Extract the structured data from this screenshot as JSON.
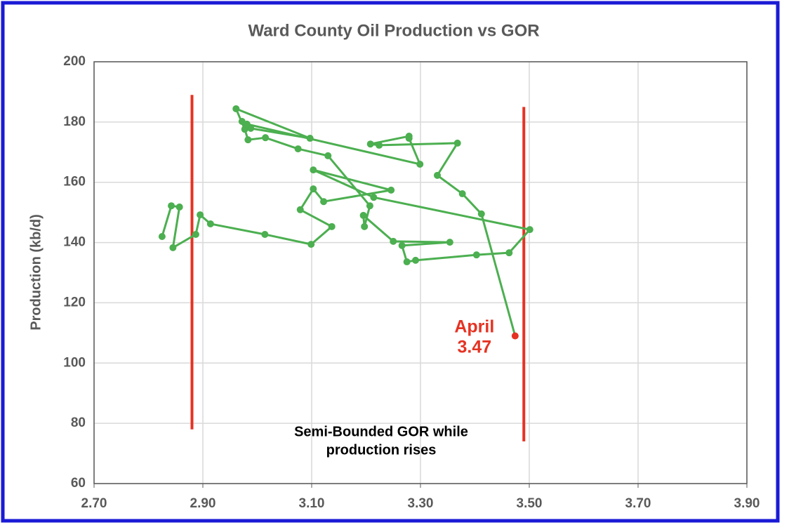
{
  "chart_data": {
    "type": "line",
    "title": "Ward County Oil Production vs GOR",
    "y_label": "Production (kb/d)",
    "xlim": [
      2.7,
      3.9
    ],
    "xticks": [
      {
        "value": 2.7,
        "label": "2.70"
      },
      {
        "value": 2.9,
        "label": "2.90"
      },
      {
        "value": 3.1,
        "label": "3.10"
      },
      {
        "value": 3.3,
        "label": "3.30"
      },
      {
        "value": 3.5,
        "label": "3.50"
      },
      {
        "value": 3.7,
        "label": "3.70"
      },
      {
        "value": 3.9,
        "label": "3.90"
      }
    ],
    "ylim": [
      60,
      200
    ],
    "yticks": [
      60,
      80,
      100,
      120,
      140,
      160,
      180,
      200
    ],
    "grid": true,
    "series": [
      {
        "color": "#4caf50",
        "x": [
          2.825,
          2.842,
          2.857,
          2.845,
          2.887,
          2.895,
          2.914,
          3.014,
          3.099,
          3.137,
          3.079,
          3.103,
          3.122,
          3.246,
          3.103,
          3.214,
          3.501,
          3.463,
          3.403,
          3.291,
          3.275,
          3.266,
          3.354,
          3.25,
          3.195,
          3.197,
          3.207,
          3.13,
          3.075,
          3.015,
          2.983,
          2.977,
          2.961,
          3.097,
          2.988,
          2.972,
          2.981,
          3.299,
          3.279,
          3.279,
          3.208,
          3.224,
          3.368,
          3.331,
          3.377,
          3.412,
          3.474
        ],
        "values": [
          142.0,
          152.2,
          151.8,
          138.3,
          142.7,
          149.2,
          146.2,
          142.7,
          139.4,
          145.3,
          150.9,
          157.8,
          153.6,
          157.4,
          164.1,
          155.0,
          144.3,
          136.6,
          135.9,
          134.1,
          133.6,
          139.0,
          140.1,
          140.4,
          149.0,
          145.3,
          152.2,
          168.8,
          171.1,
          174.8,
          174.1,
          177.6,
          184.4,
          174.6,
          177.9,
          180.2,
          179.3,
          166.0,
          174.6,
          175.3,
          172.7,
          172.3,
          173.0,
          162.3,
          156.2,
          149.5,
          109.0
        ]
      }
    ],
    "highlight_color": "#e53323",
    "reference_lines": [
      {
        "x": 2.88,
        "y": [
          78,
          189
        ],
        "color": "#e53323"
      },
      {
        "x": 3.49,
        "y": [
          74,
          185
        ],
        "color": "#e53323"
      }
    ],
    "annotations": [
      {
        "lines": [
          "April",
          "3.47"
        ],
        "color": "#e53323"
      },
      {
        "lines": [
          "Semi-Bounded GOR while",
          "production rises"
        ],
        "color": "#000000"
      }
    ]
  }
}
